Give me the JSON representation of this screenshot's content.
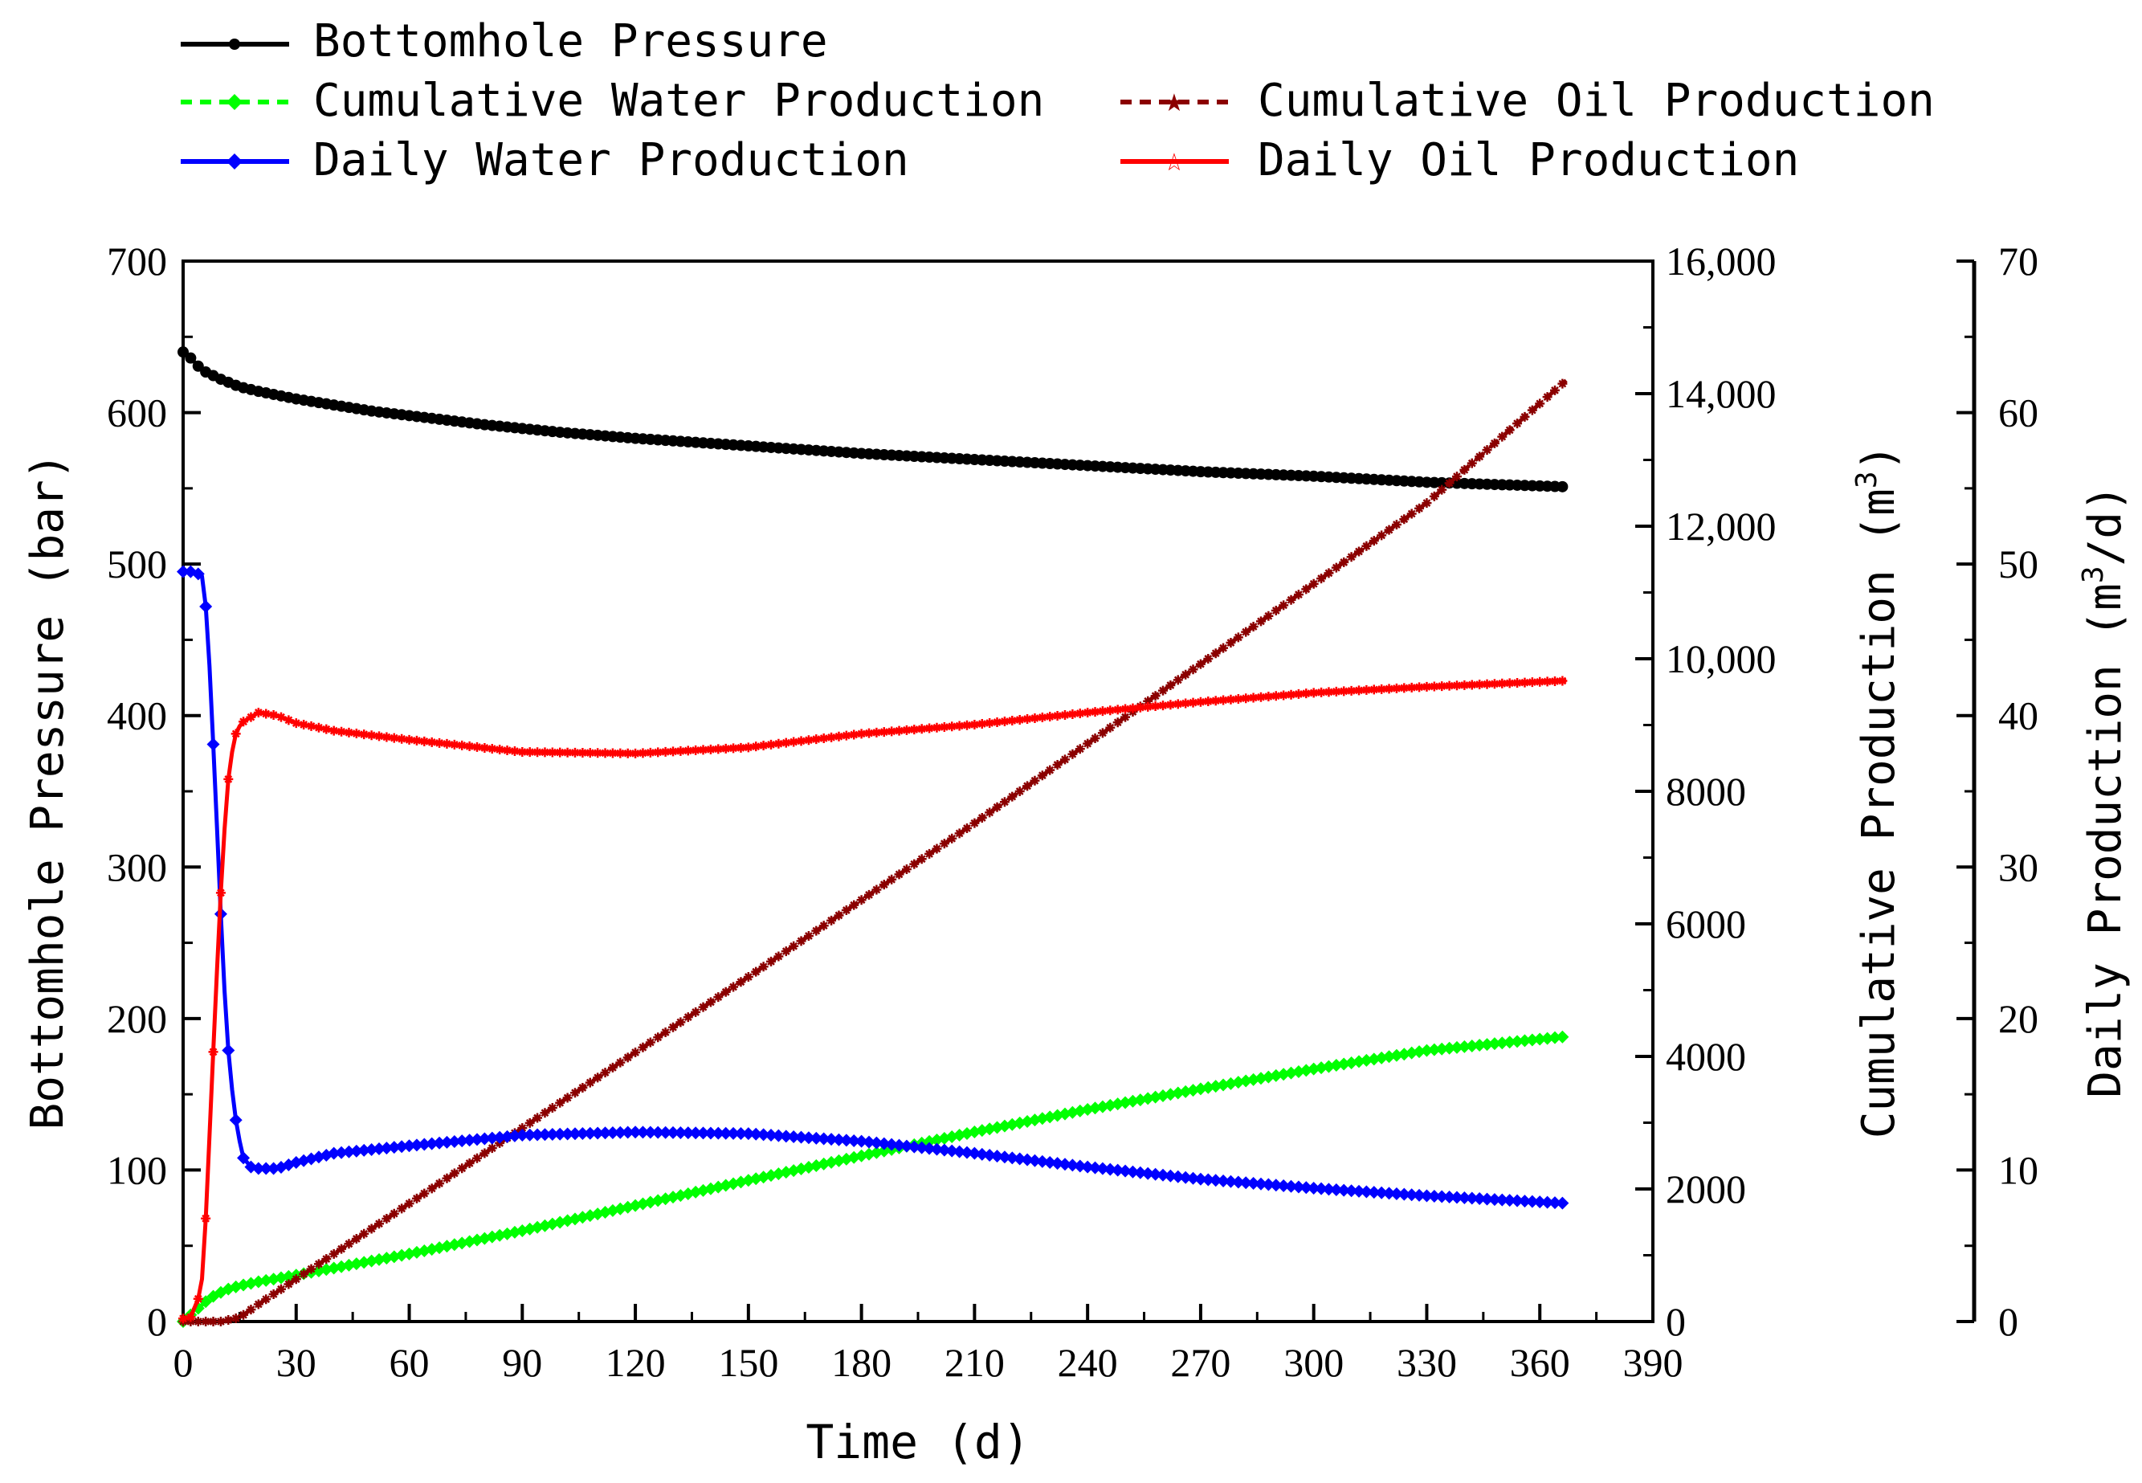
{
  "chart_data": {
    "type": "line",
    "xlabel": "Time (d)",
    "x_ticks": [
      0,
      30,
      60,
      90,
      120,
      150,
      180,
      210,
      240,
      270,
      300,
      330,
      360,
      390
    ],
    "xlim": [
      0,
      390
    ],
    "axes": {
      "pressure": {
        "label": "Bottomhole Pressure (bar)",
        "ylim": [
          0,
          700
        ],
        "ticks": [
          "0",
          "100",
          "200",
          "300",
          "400",
          "500",
          "600",
          "700"
        ],
        "tick_values": [
          0,
          100,
          200,
          300,
          400,
          500,
          600,
          700
        ]
      },
      "cumulative": {
        "label_main": "Cumulative Production (m",
        "label_sup": "3",
        "label_end": ")",
        "ylim": [
          0,
          16000
        ],
        "ticks": [
          "0",
          "2000",
          "4000",
          "6000",
          "8000",
          "10,000",
          "12,000",
          "14,000",
          "16,000"
        ],
        "tick_values": [
          0,
          2000,
          4000,
          6000,
          8000,
          10000,
          12000,
          14000,
          16000
        ]
      },
      "daily": {
        "label_main": "Daily Production (m",
        "label_sup": "3",
        "label_end": "/d)",
        "ylim": [
          0,
          70
        ],
        "ticks": [
          "0",
          "10",
          "20",
          "30",
          "40",
          "50",
          "60",
          "70"
        ],
        "tick_values": [
          0,
          10,
          20,
          30,
          40,
          50,
          60,
          70
        ]
      }
    },
    "series": [
      {
        "name": "Bottomhole Pressure",
        "axis": "pressure",
        "color": "#000000",
        "marker": "circle",
        "dash": "solid",
        "x": [
          0,
          2,
          5,
          10,
          15,
          20,
          30,
          40,
          50,
          60,
          80,
          100,
          120,
          150,
          180,
          210,
          240,
          270,
          300,
          330,
          367
        ],
        "y": [
          640,
          636,
          628,
          622,
          617,
          614,
          609,
          605,
          601,
          598,
          592,
          587,
          583,
          578,
          573,
          569,
          565,
          561,
          558,
          554,
          551
        ]
      },
      {
        "name": "Cumulative Water Production",
        "axis": "cumulative",
        "color": "#00ff00",
        "marker": "diamond",
        "dash": "dashed",
        "x": [
          0,
          2,
          4,
          6,
          8,
          10,
          12,
          15,
          20,
          30,
          60,
          90,
          120,
          150,
          180,
          210,
          240,
          270,
          300,
          330,
          367
        ],
        "y": [
          0,
          100,
          200,
          300,
          380,
          440,
          490,
          540,
          600,
          700,
          1020,
          1370,
          1750,
          2130,
          2500,
          2860,
          3200,
          3510,
          3810,
          4090,
          4300
        ]
      },
      {
        "name": "Cumulative Oil Production",
        "axis": "cumulative",
        "color": "#8b0000",
        "marker": "star",
        "dash": "dashed",
        "x": [
          0,
          5,
          10,
          15,
          20,
          30,
          60,
          90,
          120,
          150,
          180,
          210,
          240,
          270,
          300,
          330,
          367
        ],
        "y": [
          0,
          0,
          0,
          60,
          260,
          640,
          1780,
          2920,
          4060,
          5200,
          6360,
          7520,
          8720,
          9920,
          11130,
          12350,
          14200
        ]
      },
      {
        "name": "Daily Water Production",
        "axis": "daily",
        "color": "#0000ff",
        "marker": "diamond",
        "dash": "solid",
        "x": [
          0,
          3,
          5,
          6,
          7,
          8,
          9,
          10,
          11,
          12,
          13,
          14,
          15,
          16,
          18,
          20,
          25,
          30,
          40,
          60,
          90,
          120,
          150,
          180,
          210,
          240,
          270,
          300,
          330,
          367
        ],
        "y": [
          49.5,
          49.5,
          49.2,
          47.2,
          43.3,
          38.1,
          32.6,
          26.9,
          21.8,
          17.9,
          15.3,
          13.3,
          11.9,
          10.8,
          10.2,
          10.1,
          10.1,
          10.5,
          11.1,
          11.6,
          12.3,
          12.5,
          12.4,
          11.9,
          11.1,
          10.2,
          9.4,
          8.8,
          8.3,
          7.8
        ]
      },
      {
        "name": "Daily Oil Production",
        "axis": "daily",
        "color": "#ff0000",
        "marker": "star",
        "dash": "solid",
        "x": [
          0,
          2,
          4,
          5,
          6,
          7,
          8,
          9,
          10,
          11,
          12,
          13,
          14,
          15,
          16,
          18,
          20,
          25,
          30,
          40,
          60,
          90,
          120,
          150,
          180,
          210,
          240,
          270,
          300,
          330,
          367
        ],
        "y": [
          0.2,
          0.3,
          1.5,
          2.8,
          6.8,
          12.2,
          17.8,
          23.2,
          28.3,
          32.5,
          35.8,
          37.6,
          38.8,
          39.3,
          39.6,
          39.9,
          40.2,
          40.0,
          39.5,
          39.0,
          38.4,
          37.6,
          37.5,
          37.9,
          38.8,
          39.4,
          40.2,
          40.9,
          41.5,
          41.9,
          42.3
        ]
      }
    ],
    "legend": {
      "placement": "top",
      "entries": [
        "Bottomhole Pressure",
        "Cumulative Water Production",
        "Cumulative Oil Production",
        "Daily Water Production",
        "Daily Oil Production"
      ]
    }
  }
}
